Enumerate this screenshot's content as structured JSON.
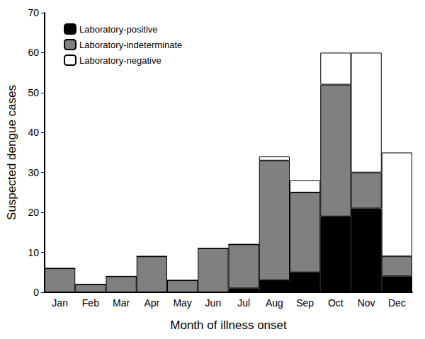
{
  "chart_data": {
    "type": "bar",
    "stacked": true,
    "x_label": "Month of illness onset",
    "y_label": "Suspected dengue cases",
    "categories": [
      "Jan",
      "Feb",
      "Mar",
      "Apr",
      "May",
      "Jun",
      "Jul",
      "Aug",
      "Sep",
      "Oct",
      "Nov",
      "Dec"
    ],
    "series": [
      {
        "name": "Laboratory-positive",
        "color": "#000000",
        "values": [
          0,
          0,
          0,
          0,
          0,
          0,
          1,
          3,
          5,
          19,
          21,
          4
        ]
      },
      {
        "name": "Laboratory-indeterminate",
        "color": "#808080",
        "values": [
          6,
          2,
          4,
          9,
          3,
          11,
          11,
          30,
          20,
          33,
          9,
          5
        ]
      },
      {
        "name": "Laboratory-negative",
        "color": "#ffffff",
        "values": [
          0,
          0,
          0,
          0,
          0,
          0,
          0,
          1,
          3,
          8,
          30,
          26
        ]
      }
    ],
    "ylim": [
      0,
      70
    ],
    "yticks": [
      0,
      10,
      20,
      30,
      40,
      50,
      60,
      70
    ],
    "grid": false,
    "legend": "upper left"
  }
}
